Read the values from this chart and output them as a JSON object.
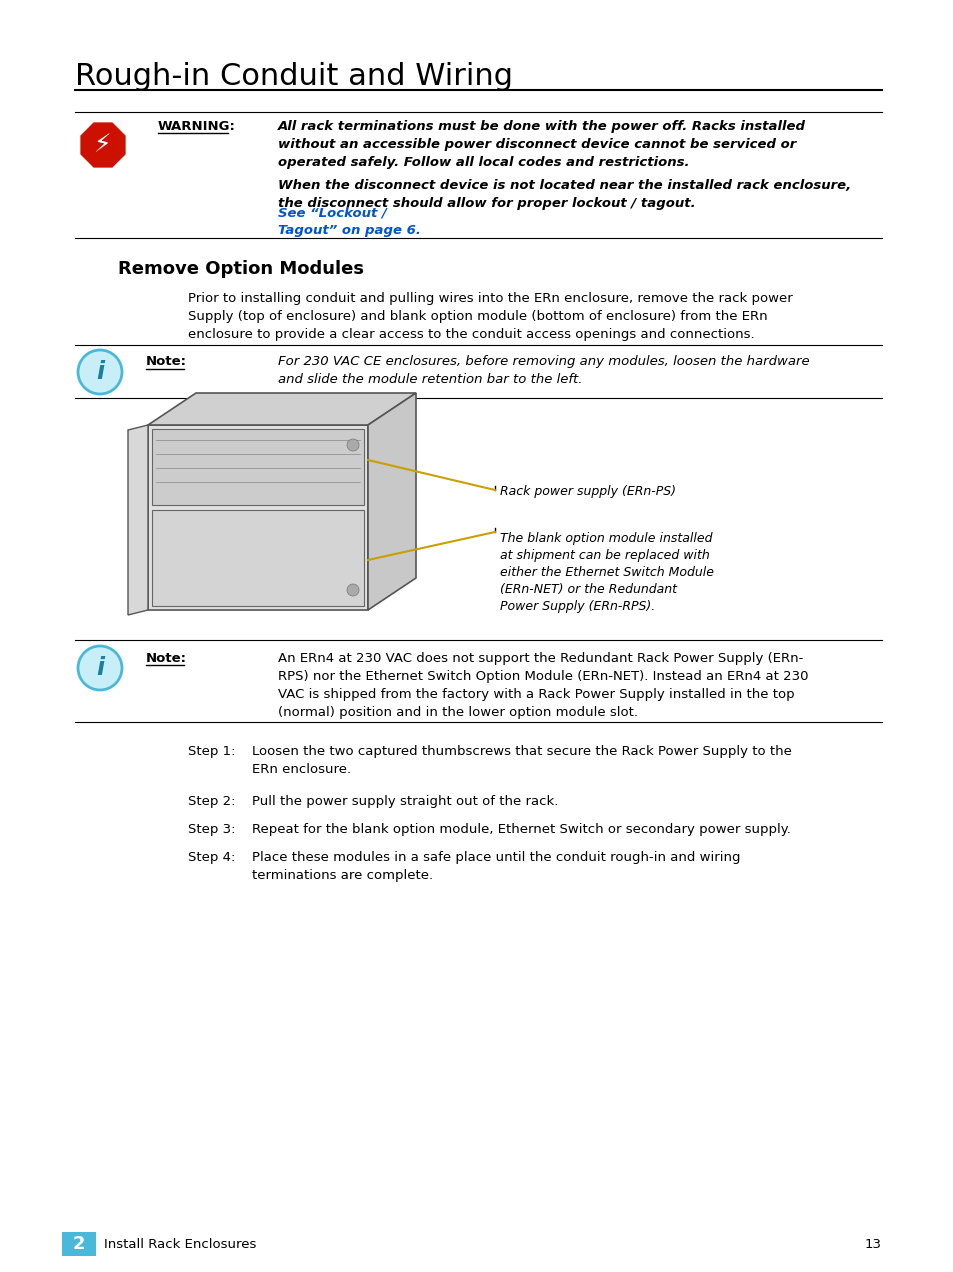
{
  "title": "Rough-in Conduit and Wiring",
  "bg_color": "#ffffff",
  "title_color": "#000000",
  "title_font_size": 22,
  "warning_label": "WARNING:",
  "warning_text_1": "All rack terminations must be done with the power off. Racks installed\nwithout an accessible power disconnect device cannot be serviced or\noperated safely. Follow all local codes and restrictions.",
  "warning_text_2": "When the disconnect device is not located near the installed rack enclosure,\nthe disconnect should allow for proper lockout / tagout. ",
  "warning_link": "See “Lockout /\nTagout” on page 6.",
  "section_title": "Remove Option Modules",
  "section_body": "Prior to installing conduit and pulling wires into the ERn enclosure, remove the rack power\nSupply (top of enclosure) and blank option module (bottom of enclosure) from the ERn\nenclosure to provide a clear access to the conduit access openings and connections.",
  "note1_label": "Note:",
  "note1_text": "For 230 VAC CE enclosures, before removing any modules, loosen the hardware\nand slide the module retention bar to the left.",
  "note2_text": "An ERn4 at 230 VAC does not support the Redundant Rack Power Supply (ERn-\nRPS) nor the Ethernet Switch Option Module (ERn-NET). Instead an ERn4 at 230\nVAC is shipped from the factory with a Rack Power Supply installed in the top\n(normal) position and in the lower option module slot.",
  "diagram_label1": "Rack power supply (ERn-PS)",
  "diagram_label2": "The blank option module installed\nat shipment can be replaced with\neither the Ethernet Switch Module\n(ERn-NET) or the Redundant\nPower Supply (ERn-RPS).",
  "step1_label": "Step 1:",
  "step1_text": "Loosen the two captured thumbscrews that secure the Rack Power Supply to the\nERn enclosure.",
  "step2_label": "Step 2:",
  "step2_text": "Pull the power supply straight out of the rack.",
  "step3_label": "Step 3:",
  "step3_text": "Repeat for the blank option module, Ethernet Switch or secondary power supply.",
  "step4_label": "Step 4:",
  "step4_text": "Place these modules in a safe place until the conduit rough-in and wiring\nterminations are complete.",
  "footer_chapter": "2",
  "footer_text": "Install Rack Enclosures",
  "footer_page": "13",
  "cyan_color": "#4ab8d8",
  "red_color": "#cc1100",
  "blue_link_color": "#0055cc"
}
